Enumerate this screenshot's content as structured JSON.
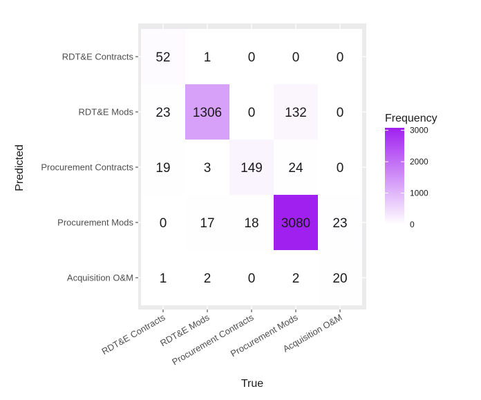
{
  "chart_data": {
    "type": "heatmap",
    "xlabel": "True",
    "ylabel": "Predicted",
    "x_categories": [
      "RDT&E Contracts",
      "RDT&E Mods",
      "Procurement Contracts",
      "Procurement Mods",
      "Acquisition O&M"
    ],
    "y_categories": [
      "RDT&E Contracts",
      "RDT&E Mods",
      "Procurement Contracts",
      "Procurement Mods",
      "Acquisition O&M"
    ],
    "values": [
      [
        52,
        1,
        0,
        0,
        0
      ],
      [
        23,
        1306,
        0,
        132,
        0
      ],
      [
        19,
        3,
        149,
        24,
        0
      ],
      [
        0,
        17,
        18,
        3080,
        23
      ],
      [
        1,
        2,
        0,
        2,
        20
      ]
    ],
    "legend": {
      "title": "Frequency",
      "ticks": [
        0,
        1000,
        2000,
        3000
      ],
      "range": [
        0,
        3080
      ],
      "low_color": "#ffffff",
      "high_color": "#a020f0"
    },
    "background_color": "#ebebeb",
    "grid_color": "#ffffff"
  }
}
